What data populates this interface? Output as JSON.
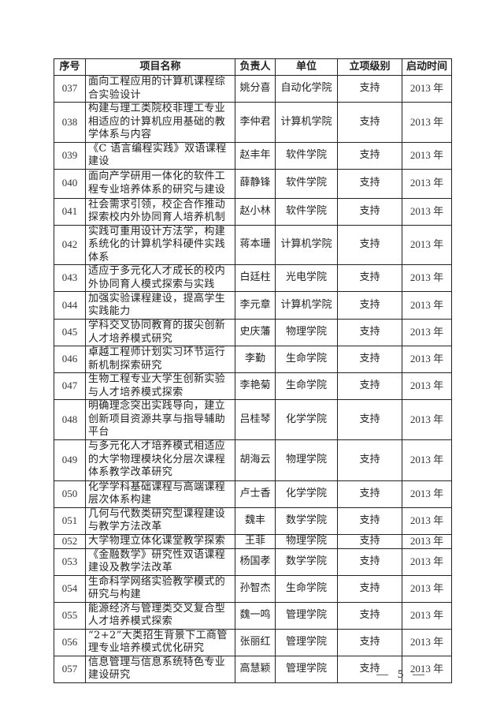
{
  "table": {
    "headers": [
      "序号",
      "项目名称",
      "负责人",
      "单位",
      "立项级别",
      "启动时间"
    ],
    "rows": [
      {
        "no": "037",
        "name": "面向工程应用的计算机课程综合实验设计",
        "leader": "姚分喜",
        "unit": "自动化学院",
        "level": "支持",
        "start": "2013 年"
      },
      {
        "no": "038",
        "name": "构建与理工类院校非理工专业相适应的计算机应用基础的教学体系与内容",
        "leader": "李仲君",
        "unit": "计算机学院",
        "level": "支持",
        "start": "2013 年"
      },
      {
        "no": "039",
        "name": "《C 语言编程实践》双语课程建设",
        "leader": "赵丰年",
        "unit": "软件学院",
        "level": "支持",
        "start": "2013 年"
      },
      {
        "no": "040",
        "name": "面向产学研用一体化的软件工程专业培养体系的研究与建设",
        "leader": "薛静锋",
        "unit": "软件学院",
        "level": "支持",
        "start": "2013 年"
      },
      {
        "no": "041",
        "name": "社会需求引领，校企合作推动探索校内外协同育人培养机制",
        "leader": "赵小林",
        "unit": "软件学院",
        "level": "支持",
        "start": "2013 年"
      },
      {
        "no": "042",
        "name": "实践可重用设计方法学，构建系统化的计算机学科硬件实践体系",
        "leader": "蒋本珊",
        "unit": "计算机学院",
        "level": "支持",
        "start": "2013 年"
      },
      {
        "no": "043",
        "name": "适应于多元化人才成长的校内外协同育人模式探索与实践",
        "leader": "白廷柱",
        "unit": "光电学院",
        "level": "支持",
        "start": "2013 年"
      },
      {
        "no": "044",
        "name": "加强实验课程建设，提高学生实践能力",
        "leader": "李元章",
        "unit": "计算机学院",
        "level": "支持",
        "start": "2013 年"
      },
      {
        "no": "045",
        "name": "学科交叉协同教育的拔尖创新人才培养模式研究",
        "leader": "史庆藩",
        "unit": "物理学院",
        "level": "支持",
        "start": "2013 年"
      },
      {
        "no": "046",
        "name": "卓越工程师计划实习环节运行新机制探索研究",
        "leader": "李勤",
        "unit": "生命学院",
        "level": "支持",
        "start": "2013 年"
      },
      {
        "no": "047",
        "name": "生物工程专业大学生创新实验与人才培养模式探索",
        "leader": "李艳菊",
        "unit": "生命学院",
        "level": "支持",
        "start": "2013 年"
      },
      {
        "no": "048",
        "name": "明确理念突出实践导向，建立创新项目资源共享与指导辅助平台",
        "leader": "吕桂琴",
        "unit": "化学学院",
        "level": "支持",
        "start": "2013 年"
      },
      {
        "no": "049",
        "name": "与多元化人才培养模式相适应的大学物理模块化分层次课程体系教学改革研究",
        "leader": "胡海云",
        "unit": "物理学院",
        "level": "支持",
        "start": "2013 年"
      },
      {
        "no": "050",
        "name": "化学学科基础课程与高端课程层次体系构建",
        "leader": "卢士香",
        "unit": "化学学院",
        "level": "支持",
        "start": "2013 年"
      },
      {
        "no": "051",
        "name": "几何与代数类研究型课程建设与教学方法改革",
        "leader": "魏丰",
        "unit": "数学学院",
        "level": "支持",
        "start": "2013 年"
      },
      {
        "no": "052",
        "name": "大学物理立体化课堂教学探索",
        "leader": "王菲",
        "unit": "物理学院",
        "level": "支持",
        "start": "2013 年"
      },
      {
        "no": "053",
        "name": "《金融数学》研究性双语课程建设及教学法改革",
        "leader": "杨国孝",
        "unit": "数学学院",
        "level": "支持",
        "start": "2013 年"
      },
      {
        "no": "054",
        "name": "生命科学网络实验教学模式的研究与构建",
        "leader": "孙智杰",
        "unit": "生命学院",
        "level": "支持",
        "start": "2013 年"
      },
      {
        "no": "055",
        "name": "能源经济与管理类交叉复合型人才培养模式探索",
        "leader": "魏一鸣",
        "unit": "管理学院",
        "level": "支持",
        "start": "2013 年"
      },
      {
        "no": "056",
        "name": "“2+2”大类招生背景下工商管理专业培养模式优化研究",
        "leader": "张丽红",
        "unit": "管理学院",
        "level": "支持",
        "start": "2013 年"
      },
      {
        "no": "057",
        "name": "信息管理与信息系统特色专业建设研究",
        "leader": "高慧颖",
        "unit": "管理学院",
        "level": "支持",
        "start": "2013 年"
      }
    ]
  },
  "footer": {
    "page_number": "— 5 —"
  }
}
